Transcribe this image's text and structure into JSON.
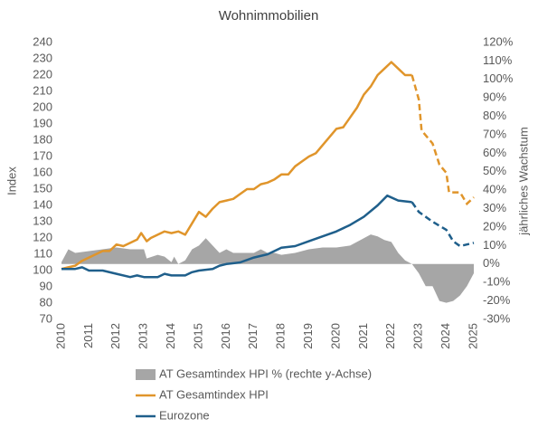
{
  "chart_data": {
    "type": "line",
    "title": "Wohnimmobilien",
    "ylabel": "Index",
    "y2label": "jährliches Wachstum",
    "xlim": [
      2010,
      2025
    ],
    "xticks": [
      2010,
      2011,
      2012,
      2013,
      2014,
      2015,
      2016,
      2017,
      2018,
      2019,
      2020,
      2021,
      2022,
      2023,
      2024,
      2025
    ],
    "ylim": [
      70,
      240
    ],
    "yticks": [
      70,
      80,
      90,
      100,
      110,
      120,
      130,
      140,
      150,
      160,
      170,
      180,
      190,
      200,
      210,
      220,
      230,
      240
    ],
    "y2lim": [
      -30,
      120
    ],
    "y2ticks": [
      {
        "value": -30,
        "label": "-30%"
      },
      {
        "value": -20,
        "label": "-20%"
      },
      {
        "value": -10,
        "label": "-10%"
      },
      {
        "value": 0,
        "label": "0%"
      },
      {
        "value": 10,
        "label": "10%"
      },
      {
        "value": 20,
        "label": "20%"
      },
      {
        "value": 30,
        "label": "30%"
      },
      {
        "value": 40,
        "label": "40%"
      },
      {
        "value": 50,
        "label": "50%"
      },
      {
        "value": 60,
        "label": "60%"
      },
      {
        "value": 70,
        "label": "70%"
      },
      {
        "value": 80,
        "label": "80%"
      },
      {
        "value": 90,
        "label": "90%"
      },
      {
        "value": 100,
        "label": "100%"
      },
      {
        "value": 110,
        "label": "110%"
      },
      {
        "value": 120,
        "label": "120%"
      }
    ],
    "series": [
      {
        "name": "AT Gesamtindex HPI % (rechte y-Achse)",
        "kind": "area",
        "axis": "y2",
        "color": "#a6a6a6",
        "x": [
          2010,
          2010.25,
          2010.5,
          2011,
          2011.5,
          2012,
          2012.5,
          2013,
          2013.1,
          2013.5,
          2013.75,
          2014,
          2014.1,
          2014.25,
          2014.5,
          2014.75,
          2015,
          2015.25,
          2015.5,
          2015.75,
          2016,
          2016.25,
          2016.5,
          2017,
          2017.25,
          2017.5,
          2017.75,
          2018,
          2018.5,
          2019,
          2019.5,
          2020,
          2020.5,
          2021,
          2021.25,
          2021.5,
          2021.75,
          2022,
          2022.25,
          2022.5,
          2022.75,
          2023,
          2023.25,
          2023.5,
          2023.75,
          2024,
          2024.25,
          2024.5,
          2024.75,
          2025
        ],
        "values": [
          1,
          8,
          6,
          7,
          8,
          9,
          8,
          8,
          3,
          5,
          4,
          1,
          4,
          0,
          2,
          8,
          10,
          14,
          10,
          6,
          8,
          6,
          6,
          6,
          8,
          6,
          6,
          5,
          6,
          8,
          9,
          9,
          10,
          14,
          16,
          15,
          13,
          12,
          6,
          2,
          0,
          -5,
          -12,
          -12,
          -20,
          -21,
          -20,
          -17,
          -12,
          -5
        ]
      },
      {
        "name": "AT Gesamtindex HPI",
        "kind": "line",
        "color": "#e0952b",
        "x": [
          2010,
          2010.25,
          2010.5,
          2010.75,
          2011,
          2011.25,
          2011.5,
          2011.75,
          2012,
          2012.25,
          2012.5,
          2012.75,
          2012.9,
          2013.1,
          2013.25,
          2013.5,
          2013.75,
          2014,
          2014.25,
          2014.5,
          2014.75,
          2015,
          2015.25,
          2015.5,
          2015.75,
          2016,
          2016.25,
          2016.5,
          2016.75,
          2017,
          2017.25,
          2017.5,
          2017.75,
          2018,
          2018.25,
          2018.5,
          2018.75,
          2019,
          2019.25,
          2019.5,
          2019.75,
          2020,
          2020.25,
          2020.5,
          2020.75,
          2021,
          2021.25,
          2021.5,
          2021.75,
          2022,
          2022.25,
          2022.5,
          2022.75
        ],
        "values": [
          101,
          102,
          103,
          106,
          108,
          110,
          112,
          112,
          116,
          115,
          117,
          119,
          123,
          118,
          120,
          122,
          124,
          123,
          124,
          122,
          129,
          136,
          133,
          138,
          142,
          143,
          144,
          147,
          150,
          150,
          153,
          154,
          156,
          159,
          159,
          164,
          167,
          170,
          172,
          177,
          182,
          187,
          188,
          194,
          200,
          208,
          213,
          220,
          224,
          228,
          224,
          220,
          220
        ],
        "dashed_x": [
          2022.75,
          2023,
          2023.1,
          2023.25,
          2023.5,
          2023.75,
          2024,
          2024.1,
          2024.5,
          2024.75,
          2025
        ],
        "dashed_values": [
          220,
          205,
          186,
          183,
          178,
          165,
          160,
          148,
          148,
          141,
          145
        ]
      },
      {
        "name": "Eurozone",
        "kind": "line",
        "color": "#1f5f8b",
        "x": [
          2010,
          2010.5,
          2010.75,
          2011,
          2011.5,
          2012,
          2012.5,
          2012.75,
          2013,
          2013.5,
          2013.75,
          2014,
          2014.5,
          2014.75,
          2015,
          2015.5,
          2015.75,
          2016,
          2016.5,
          2017,
          2017.5,
          2018,
          2018.5,
          2019,
          2019.5,
          2020,
          2020.5,
          2021,
          2021.5,
          2021.85,
          2022.25,
          2022.75
        ],
        "values": [
          101,
          101,
          102,
          100,
          100,
          98,
          96,
          97,
          96,
          96,
          98,
          97,
          97,
          99,
          100,
          101,
          103,
          104,
          105,
          108,
          110,
          114,
          115,
          118,
          121,
          124,
          128,
          133,
          140,
          146,
          143,
          142
        ],
        "dashed_x": [
          2022.75,
          2023,
          2023.5,
          2024,
          2024.25,
          2024.5,
          2025
        ],
        "dashed_values": [
          142,
          136,
          130,
          125,
          118,
          115,
          117
        ]
      }
    ]
  }
}
